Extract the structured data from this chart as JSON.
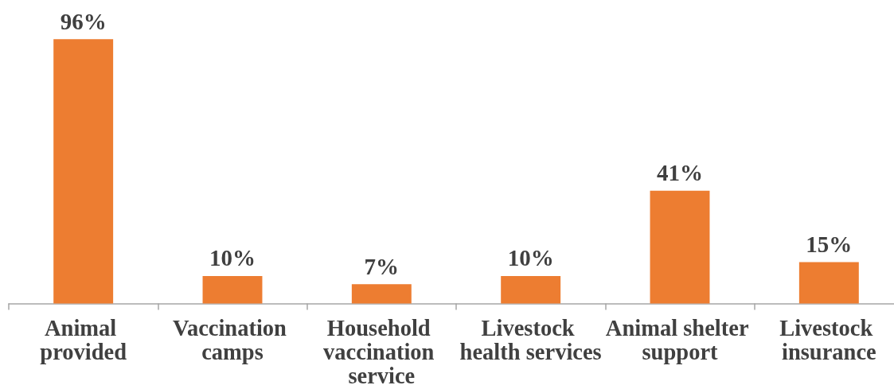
{
  "chart_data": {
    "type": "bar",
    "categories": [
      "Animal provided",
      "Vaccination camps",
      "Household vaccination service",
      "Livestock health services",
      "Animal shelter support",
      "Livestock insurance"
    ],
    "values": [
      96,
      10,
      7,
      10,
      41,
      15
    ],
    "value_labels": [
      "96%",
      "10%",
      "7%",
      "10%",
      "41%",
      "15%"
    ],
    "color": "#ed7d31",
    "tick_labels": "x",
    "grid": false
  }
}
